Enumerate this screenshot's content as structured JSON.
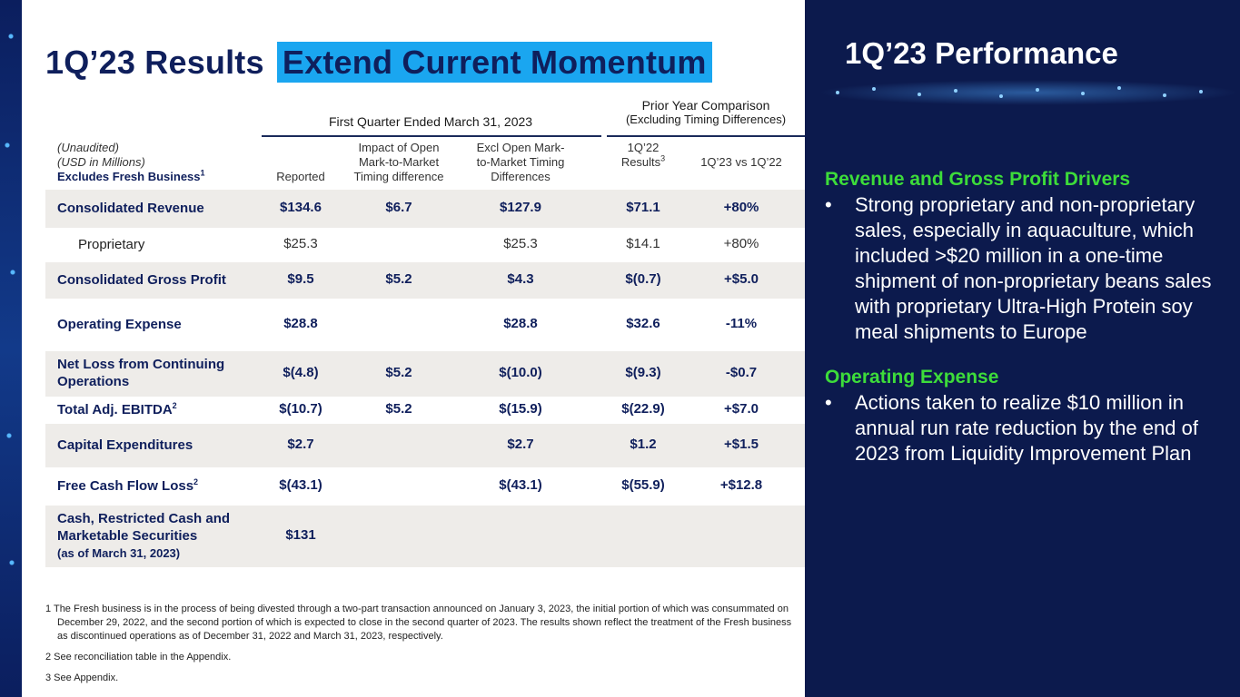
{
  "title": {
    "part1": "1Q’23 Results",
    "part2": "Extend Current Momentum"
  },
  "table": {
    "group_first": "First Quarter Ended March 31, 2023",
    "group_prior_line1": "Prior Year Comparison",
    "group_prior_line2": "(Excluding Timing Differences)",
    "meta_line1": "(Unaudited)",
    "meta_line2": "(USD in Millions)",
    "meta_line3": "Excludes Fresh Business",
    "meta_sup": "1",
    "col_reported": "Reported",
    "col_impact": [
      "Impact of Open",
      "Mark-to-Market",
      "Timing difference"
    ],
    "col_excl": [
      "Excl Open Mark-",
      "to-Market Timing",
      "Differences"
    ],
    "col_1q22": [
      "1Q’22",
      "Results"
    ],
    "col_1q22_sup": "3",
    "col_vs": "1Q’23 vs 1Q’22",
    "rows": [
      {
        "label": "Consolidated  Revenue",
        "reported": "$134.6",
        "impact": "$6.7",
        "excl": "$127.9",
        "py": "$71.1",
        "vs": "+80%"
      },
      {
        "label": "Proprietary",
        "reported": "$25.3",
        "impact": "",
        "excl": "$25.3",
        "py": "$14.1",
        "vs": "+80%"
      },
      {
        "label": "Consolidated Gross Profit",
        "reported": "$9.5",
        "impact": "$5.2",
        "excl": "$4.3",
        "py": "$(0.7)",
        "vs": "+$5.0"
      },
      {
        "label": "Operating Expense",
        "reported": "$28.8",
        "impact": "",
        "excl": "$28.8",
        "py": "$32.6",
        "vs": "-11%"
      },
      {
        "label": "Net Loss from Continuing",
        "label2": "Operations",
        "reported": "$(4.8)",
        "impact": "$5.2",
        "excl": "$(10.0)",
        "py": "$(9.3)",
        "vs": "-$0.7"
      },
      {
        "label": "Total Adj. EBITDA",
        "sup": "2",
        "reported": "$(10.7)",
        "impact": "$5.2",
        "excl": "$(15.9)",
        "py": "$(22.9)",
        "vs": "+$7.0"
      },
      {
        "label": "Capital Expenditures",
        "reported": "$2.7",
        "impact": "",
        "excl": "$2.7",
        "py": "$1.2",
        "vs": "+$1.5"
      },
      {
        "label": "Free Cash Flow Loss",
        "sup": "2",
        "reported": "$(43.1)",
        "impact": "",
        "excl": "$(43.1)",
        "py": "$(55.9)",
        "vs": "+$12.8"
      },
      {
        "label": "Cash, Restricted Cash and",
        "label2": "Marketable Securities",
        "label3": "(as of March 31, 2023)",
        "reported": "$131",
        "impact": "",
        "excl": "",
        "py": "",
        "vs": ""
      }
    ]
  },
  "footnotes": {
    "fn1": "1 The Fresh business is in the process of being divested through a two-part transaction announced on January 3, 2023, the initial portion of which was consummated on December 29, 2022, and the second portion of which is expected to close in the second quarter of 2023. The results shown reflect the treatment of the Fresh business as discontinued operations as of December 31, 2022 and March 31, 2023, respectively.",
    "fn2": "2 See reconciliation table in the Appendix.",
    "fn3": "3 See Appendix."
  },
  "right_panel": {
    "title": "1Q’23 Performance",
    "sections": [
      {
        "heading": "Revenue and Gross Profit Drivers",
        "bullet": "Strong proprietary and non-proprietary sales, especially in aquaculture, which included >$20 million in a one-time shipment of non-proprietary beans sales with proprietary Ultra-High Protein soy meal shipments to Europe"
      },
      {
        "heading": "Operating Expense",
        "bullet": "Actions taken to realize $10 million in annual run rate reduction by the end of 2023 from Liquidity Improvement Plan"
      }
    ],
    "bullet_char": "•"
  },
  "colors": {
    "navy": "#0c1a4d",
    "title_text": "#0f1f5c",
    "highlight": "#1aa6f0",
    "green": "#3ddc3a",
    "row_shade": "#eeece9"
  }
}
